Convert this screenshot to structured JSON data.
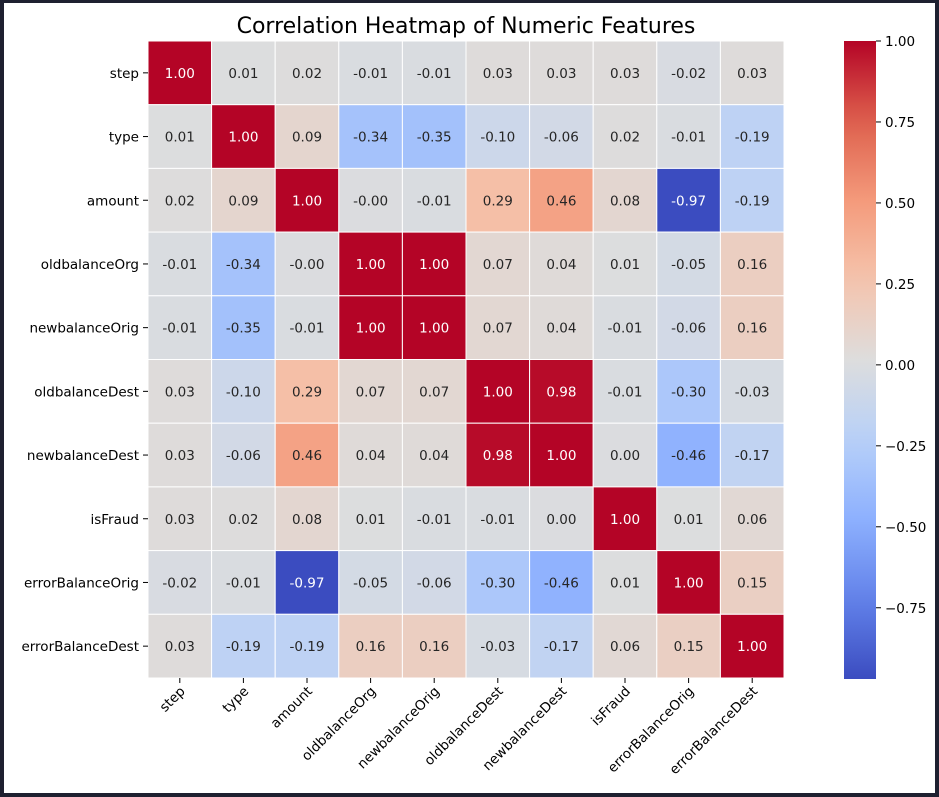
{
  "chart_data": {
    "type": "heatmap",
    "title": "Correlation Heatmap of Numeric Features",
    "xlabel": "",
    "ylabel": "",
    "labels": [
      "step",
      "type",
      "amount",
      "oldbalanceOrg",
      "newbalanceOrig",
      "oldbalanceDest",
      "newbalanceDest",
      "isFraud",
      "errorBalanceOrig",
      "errorBalanceDest"
    ],
    "matrix": [
      [
        1.0,
        0.01,
        0.02,
        -0.01,
        -0.01,
        0.03,
        0.03,
        0.03,
        -0.02,
        0.03
      ],
      [
        0.01,
        1.0,
        0.09,
        -0.34,
        -0.35,
        -0.1,
        -0.06,
        0.02,
        -0.01,
        -0.19
      ],
      [
        0.02,
        0.09,
        1.0,
        -0.0,
        -0.01,
        0.29,
        0.46,
        0.08,
        -0.97,
        -0.19
      ],
      [
        -0.01,
        -0.34,
        -0.0,
        1.0,
        1.0,
        0.07,
        0.04,
        0.01,
        -0.05,
        0.16
      ],
      [
        -0.01,
        -0.35,
        -0.01,
        1.0,
        1.0,
        0.07,
        0.04,
        -0.01,
        -0.06,
        0.16
      ],
      [
        0.03,
        -0.1,
        0.29,
        0.07,
        0.07,
        1.0,
        0.98,
        -0.01,
        -0.3,
        -0.03
      ],
      [
        0.03,
        -0.06,
        0.46,
        0.04,
        0.04,
        0.98,
        1.0,
        0.0,
        -0.46,
        -0.17
      ],
      [
        0.03,
        0.02,
        0.08,
        0.01,
        -0.01,
        -0.01,
        0.0,
        1.0,
        0.01,
        0.06
      ],
      [
        -0.02,
        -0.01,
        -0.97,
        -0.05,
        -0.06,
        -0.3,
        -0.46,
        0.01,
        1.0,
        0.15
      ],
      [
        0.03,
        -0.19,
        -0.19,
        0.16,
        0.16,
        -0.03,
        -0.17,
        0.06,
        0.15,
        1.0
      ]
    ],
    "value_format": "2 decimals",
    "colormap": "coolwarm",
    "colormap_range": [
      -0.97,
      1.0
    ],
    "colorbar_ticks": [
      "1.00",
      "0.75",
      "0.50",
      "0.25",
      "0.00",
      "−0.25",
      "−0.50",
      "−0.75"
    ],
    "colorbar_tick_values": [
      1.0,
      0.75,
      0.5,
      0.25,
      0.0,
      -0.25,
      -0.5,
      -0.75
    ],
    "cell_border_color": "#ffffff",
    "text_dark": "#262626",
    "text_light": "#ffffff"
  }
}
